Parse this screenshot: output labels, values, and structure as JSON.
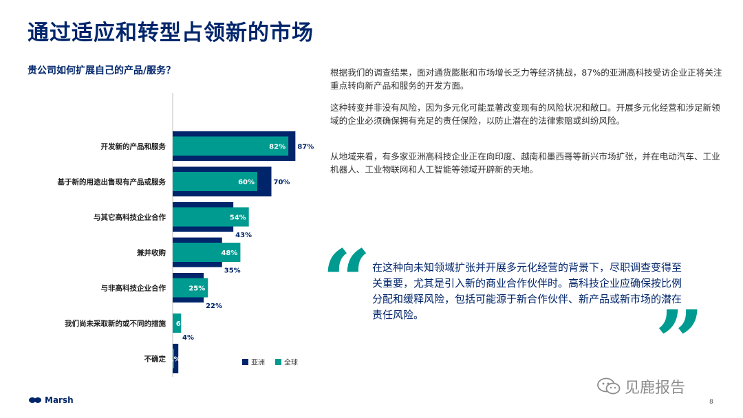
{
  "page": {
    "title": "通过适应和转型占领新的市场",
    "subtitle": "贵公司如何扩展自己的产品/服务？",
    "paragraphs": [
      "根据我们的调查结果，面对通货膨胀和市场增长乏力等经济挑战，87%的亚洲高科技受访企业正将关注重点转向新产品和服务的开发方面。",
      "这种转变并非没有风险，因为多元化可能显著改变现有的风险状况和敞口。开展多元化经营和涉足新领域的企业必须确保拥有充足的责任保险，以防止潜在的法律索赔或纠纷风险。",
      "从地域来看，有多家亚洲高科技企业正在向印度、越南和墨西哥等新兴市场扩张，并在电动汽车、工业机器人、工业物联网和人工智能等领域开辟新的天地。"
    ],
    "quote": "在这种向未知领域扩张并开展多元化经营的背景下，尽职调查变得至关重要，尤其是引入新的商业合作伙伴时。高科技企业应确保按比例分配和缓释风险，包括可能源于新合作伙伴、新产品或新市场的潜在责任风险。",
    "quote_open": "“",
    "quote_close": "”",
    "brand": "Marsh",
    "watermark": "见鹿报告",
    "page_number": "8"
  },
  "colors": {
    "asia": "#00256b",
    "global": "#009b90",
    "title": "#00256b",
    "axis": "#bfbfbf"
  },
  "chart_data": {
    "type": "bar",
    "orientation": "horizontal",
    "categories": [
      "开发新的产品和服务",
      "基于新的用途出售现有产品或服务",
      "与其它高科技企业合作",
      "兼并收购",
      "与非高科技企业合作",
      "我们尚未采取新的或不同的措施",
      "不确定"
    ],
    "series": [
      {
        "name": "亚洲",
        "values": [
          87,
          70,
          43,
          35,
          22,
          0,
          4
        ],
        "labels": [
          "87%",
          "70%",
          "43%",
          "35%",
          "22%",
          "",
          "4%"
        ]
      },
      {
        "name": "全球",
        "values": [
          82,
          60,
          54,
          48,
          25,
          6,
          1
        ],
        "labels": [
          "82%",
          "60%",
          "54%",
          "48%",
          "25%",
          "6%",
          "1%"
        ]
      }
    ],
    "xlim": [
      0,
      100
    ],
    "legend_position": "bottom-right"
  }
}
